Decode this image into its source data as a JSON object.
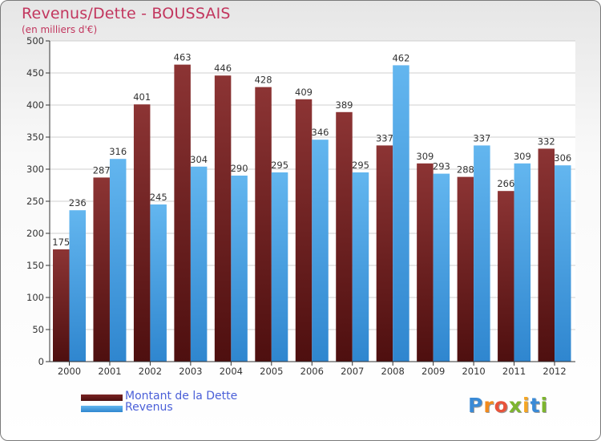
{
  "header": {
    "title": "Revenus/Dette - BOUSSAIS",
    "subtitle": "(en milliers d'€)"
  },
  "colors": {
    "dette": "#7a2a2a",
    "revenus": "#55aae8",
    "title": "#c2365e",
    "legend_text": "#4a5fd8",
    "grid": "#cccccc"
  },
  "chart_data": {
    "type": "bar",
    "title": "Revenus/Dette - BOUSSAIS",
    "subtitle": "(en milliers d'€)",
    "categories": [
      "2000",
      "2001",
      "2002",
      "2003",
      "2004",
      "2005",
      "2006",
      "2007",
      "2008",
      "2009",
      "2010",
      "2011",
      "2012"
    ],
    "series": [
      {
        "name": "Montant de la Dette",
        "color": "#7a2a2a",
        "values": [
          175,
          287,
          401,
          463,
          446,
          428,
          409,
          389,
          337,
          309,
          288,
          266,
          332
        ]
      },
      {
        "name": "Revenus",
        "color": "#55aae8",
        "values": [
          236,
          316,
          245,
          304,
          290,
          295,
          346,
          295,
          462,
          293,
          337,
          309,
          306
        ]
      }
    ],
    "ylim": [
      0,
      500
    ],
    "yticks": [
      0,
      50,
      100,
      150,
      200,
      250,
      300,
      350,
      400,
      450,
      500
    ],
    "grid": true,
    "legend_position": "bottom-left",
    "data_labels": true
  },
  "legend": {
    "items": [
      {
        "label": "Montant de la Dette",
        "color": "#7a2a2a"
      },
      {
        "label": "Revenus",
        "color": "#55aae8"
      }
    ]
  },
  "logo": {
    "letters": [
      "P",
      "r",
      "o",
      "x",
      "i",
      "t",
      "i"
    ]
  }
}
